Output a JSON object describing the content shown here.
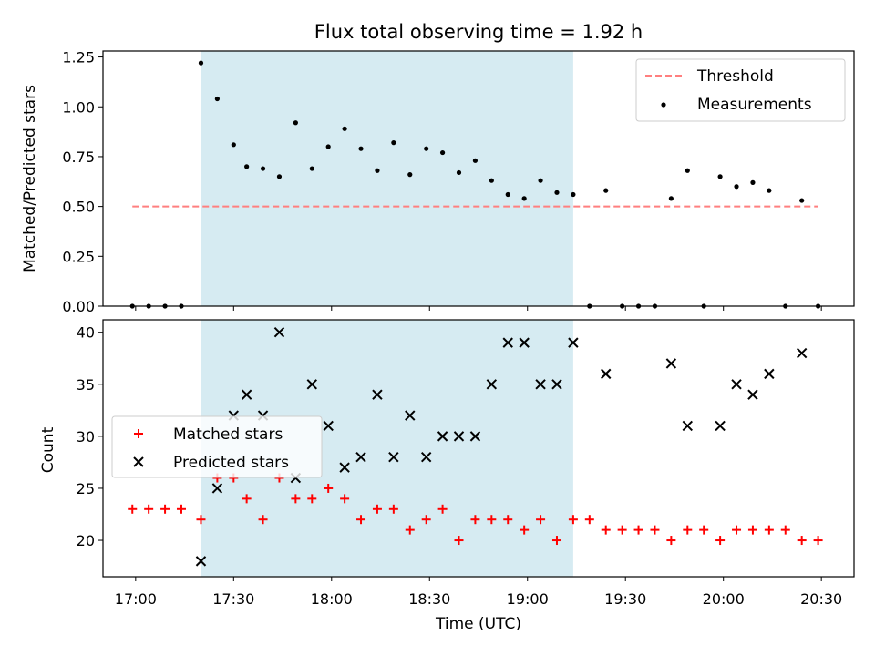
{
  "chart_data": [
    {
      "type": "scatter",
      "title": "Flux total observing time = 1.92 h",
      "xlabel": "",
      "ylabel": "Matched/Predicted stars",
      "ylim": [
        0.0,
        1.28
      ],
      "yticks": [
        "0.00",
        "0.25",
        "0.50",
        "0.75",
        "1.00",
        "1.25"
      ],
      "ytick_values": [
        0.0,
        0.25,
        0.5,
        0.75,
        1.0,
        1.25
      ],
      "shaded_span": [
        "17:20",
        "19:14"
      ],
      "threshold": {
        "name": "Threshold",
        "value": 0.5,
        "x": [
          "16:59",
          "20:29"
        ],
        "color": "#ff7f7f"
      },
      "series": [
        {
          "name": "Measurements",
          "x": [
            "16:59",
            "17:04",
            "17:09",
            "17:14",
            "17:20",
            "17:25",
            "17:30",
            "17:34",
            "17:39",
            "17:44",
            "17:49",
            "17:54",
            "17:59",
            "18:04",
            "18:09",
            "18:14",
            "18:19",
            "18:24",
            "18:29",
            "18:34",
            "18:39",
            "18:44",
            "18:49",
            "18:54",
            "18:59",
            "19:04",
            "19:09",
            "19:14",
            "19:19",
            "19:24",
            "19:29",
            "19:34",
            "19:39",
            "19:44",
            "19:49",
            "19:54",
            "19:59",
            "20:04",
            "20:09",
            "20:14",
            "20:19",
            "20:24",
            "20:29"
          ],
          "y": [
            0.0,
            0.0,
            0.0,
            0.0,
            1.22,
            1.04,
            0.81,
            0.7,
            0.69,
            0.65,
            0.92,
            0.69,
            0.8,
            0.89,
            0.79,
            0.68,
            0.82,
            0.66,
            0.79,
            0.77,
            0.67,
            0.73,
            0.63,
            0.56,
            0.54,
            0.63,
            0.57,
            0.56,
            0.0,
            0.58,
            0.0,
            0.0,
            0.0,
            0.54,
            0.68,
            0.0,
            0.65,
            0.6,
            0.62,
            0.58,
            0.0,
            0.53,
            0.0
          ],
          "color": "#000000"
        }
      ],
      "legend": "upper right"
    },
    {
      "type": "scatter",
      "xlabel": "Time (UTC)",
      "ylabel": "Count",
      "ylim": [
        16.5,
        41.2
      ],
      "yticks": [
        "20",
        "25",
        "30",
        "35",
        "40"
      ],
      "ytick_values": [
        20,
        25,
        30,
        35,
        40
      ],
      "xticks": [
        "17:00",
        "17:30",
        "18:00",
        "18:30",
        "19:00",
        "19:30",
        "20:00",
        "20:30"
      ],
      "shaded_span": [
        "17:20",
        "19:14"
      ],
      "series": [
        {
          "name": "Matched stars",
          "marker": "+",
          "color": "#ff0000",
          "x": [
            "16:59",
            "17:04",
            "17:09",
            "17:14",
            "17:20",
            "17:25",
            "17:30",
            "17:34",
            "17:39",
            "17:44",
            "17:49",
            "17:54",
            "17:59",
            "18:04",
            "18:09",
            "18:14",
            "18:19",
            "18:24",
            "18:29",
            "18:34",
            "18:39",
            "18:44",
            "18:49",
            "18:54",
            "18:59",
            "19:04",
            "19:09",
            "19:14",
            "19:19",
            "19:24",
            "19:29",
            "19:34",
            "19:39",
            "19:44",
            "19:49",
            "19:54",
            "19:59",
            "20:04",
            "20:09",
            "20:14",
            "20:19",
            "20:24",
            "20:29"
          ],
          "y": [
            23,
            23,
            23,
            23,
            22,
            26,
            26,
            24,
            22,
            26,
            24,
            24,
            25,
            24,
            22,
            23,
            23,
            21,
            22,
            23,
            20,
            22,
            22,
            22,
            21,
            22,
            20,
            22,
            22,
            21,
            21,
            21,
            21,
            20,
            21,
            21,
            20,
            21,
            21,
            21,
            21,
            20,
            20
          ]
        },
        {
          "name": "Predicted stars",
          "marker": "x",
          "color": "#000000",
          "x": [
            "17:20",
            "17:25",
            "17:30",
            "17:34",
            "17:39",
            "17:44",
            "17:49",
            "17:54",
            "17:59",
            "18:04",
            "18:09",
            "18:14",
            "18:19",
            "18:24",
            "18:29",
            "18:34",
            "18:39",
            "18:44",
            "18:49",
            "18:54",
            "18:59",
            "19:04",
            "19:09",
            "19:14",
            "19:24",
            "19:44",
            "19:49",
            "19:59",
            "20:04",
            "20:09",
            "20:14",
            "20:24"
          ],
          "y": [
            18,
            25,
            32,
            34,
            32,
            40,
            26,
            35,
            31,
            27,
            28,
            34,
            28,
            32,
            28,
            30,
            30,
            30,
            35,
            39,
            39,
            35,
            35,
            39,
            36,
            37,
            31,
            31,
            35,
            34,
            36,
            38
          ]
        }
      ],
      "legend": "center left"
    }
  ],
  "x_axis_range": [
    "16:50",
    "20:40"
  ],
  "shade_color": "#add8e6"
}
